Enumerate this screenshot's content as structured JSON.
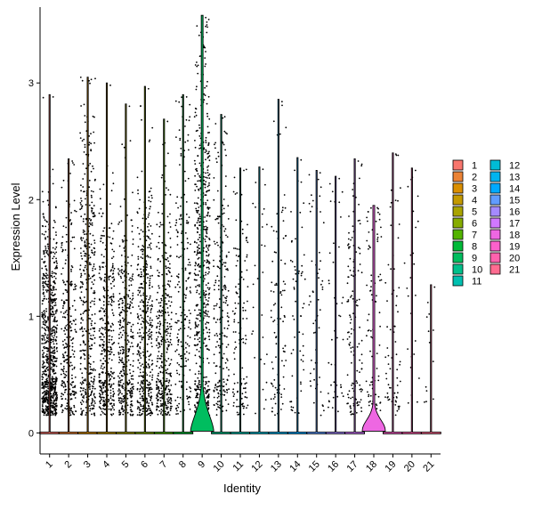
{
  "chart_data": {
    "type": "violin",
    "title": "",
    "xlabel": "Identity",
    "ylabel": "Expression Level",
    "ylim": [
      -0.18,
      3.65
    ],
    "yticks": [
      0,
      1,
      2,
      3
    ],
    "categories": [
      "1",
      "2",
      "3",
      "4",
      "5",
      "6",
      "7",
      "8",
      "9",
      "10",
      "11",
      "12",
      "13",
      "14",
      "15",
      "16",
      "17",
      "18",
      "19",
      "20",
      "21"
    ],
    "max_expression": [
      2.9,
      2.35,
      3.05,
      3.0,
      2.82,
      2.97,
      2.69,
      2.9,
      3.58,
      2.73,
      2.27,
      2.28,
      2.86,
      2.36,
      2.25,
      2.2,
      2.35,
      1.95,
      2.4,
      2.27,
      1.27
    ],
    "point_counts": [
      800,
      280,
      420,
      380,
      360,
      420,
      370,
      210,
      620,
      230,
      120,
      30,
      95,
      60,
      55,
      45,
      140,
      90,
      70,
      25,
      12
    ],
    "point_center": [
      0.65,
      0.75,
      1.1,
      0.7,
      0.7,
      0.8,
      0.7,
      1.2,
      1.3,
      0.9,
      0.8,
      1.2,
      0.9,
      1.0,
      1.0,
      1.0,
      0.9,
      0.9,
      0.8,
      1.2,
      0.8
    ],
    "violin_shape": {
      "9": "wide",
      "18": "wide"
    },
    "colors": [
      "#F8766D",
      "#EB8335",
      "#DA8F00",
      "#C49A00",
      "#A9A400",
      "#86AC00",
      "#53B400",
      "#00BA38",
      "#00BD5F",
      "#00C08B",
      "#00C0B0",
      "#00BCD6",
      "#00B4EF",
      "#00A9FF",
      "#619CFF",
      "#A58AFF",
      "#D078FF",
      "#EE67E2",
      "#FD61CB",
      "#FF62AD",
      "#FF6C91"
    ],
    "legend": {
      "position": "right",
      "columns": [
        [
          "1",
          "2",
          "3",
          "4",
          "5",
          "6",
          "7",
          "8",
          "9",
          "10",
          "11"
        ],
        [
          "12",
          "13",
          "14",
          "15",
          "16",
          "17",
          "18",
          "19",
          "20",
          "21"
        ]
      ]
    },
    "grid": false
  }
}
